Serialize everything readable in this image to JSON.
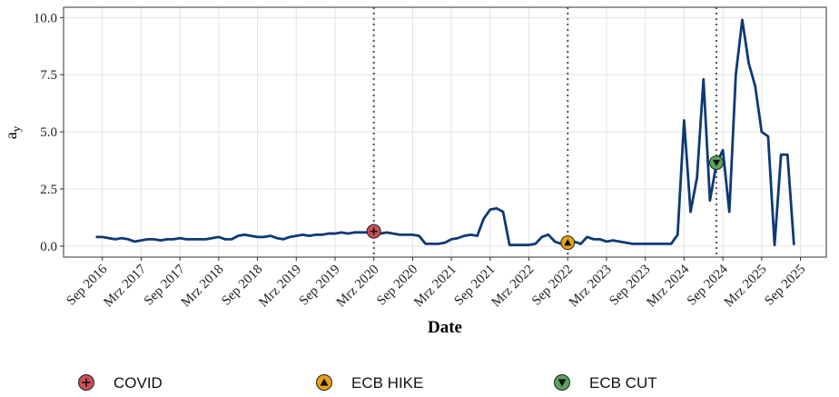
{
  "chart_data": {
    "type": "line",
    "x_label": "Date",
    "y_label": "a",
    "y_label_sub": "y",
    "x": [
      "2016-08",
      "2016-09",
      "2016-10",
      "2016-11",
      "2016-12",
      "2017-01",
      "2017-02",
      "2017-03",
      "2017-04",
      "2017-05",
      "2017-06",
      "2017-07",
      "2017-08",
      "2017-09",
      "2017-10",
      "2017-11",
      "2017-12",
      "2018-01",
      "2018-02",
      "2018-03",
      "2018-04",
      "2018-05",
      "2018-06",
      "2018-07",
      "2018-08",
      "2018-09",
      "2018-10",
      "2018-11",
      "2018-12",
      "2019-01",
      "2019-02",
      "2019-03",
      "2019-04",
      "2019-05",
      "2019-06",
      "2019-07",
      "2019-08",
      "2019-09",
      "2019-10",
      "2019-11",
      "2019-12",
      "2020-01",
      "2020-02",
      "2020-03",
      "2020-04",
      "2020-05",
      "2020-06",
      "2020-07",
      "2020-08",
      "2020-09",
      "2020-10",
      "2020-11",
      "2020-12",
      "2021-01",
      "2021-02",
      "2021-03",
      "2021-04",
      "2021-05",
      "2021-06",
      "2021-07",
      "2021-08",
      "2021-09",
      "2021-10",
      "2021-11",
      "2021-12",
      "2022-01",
      "2022-02",
      "2022-03",
      "2022-04",
      "2022-05",
      "2022-06",
      "2022-07",
      "2022-08",
      "2022-09",
      "2022-10",
      "2022-11",
      "2022-12",
      "2023-01",
      "2023-02",
      "2023-03",
      "2023-04",
      "2023-05",
      "2023-06",
      "2023-07",
      "2023-08",
      "2023-09",
      "2023-10",
      "2023-11",
      "2023-12",
      "2024-01",
      "2024-02",
      "2024-03",
      "2024-04",
      "2024-05",
      "2024-06",
      "2024-07",
      "2024-08",
      "2024-09",
      "2024-10",
      "2024-11",
      "2024-12",
      "2025-01",
      "2025-02",
      "2025-03",
      "2025-04",
      "2025-05",
      "2025-06",
      "2025-07",
      "2025-08"
    ],
    "series": [
      {
        "color": "#0d3a75",
        "values": [
          0.4,
          0.4,
          0.35,
          0.3,
          0.35,
          0.3,
          0.2,
          0.25,
          0.3,
          0.3,
          0.25,
          0.3,
          0.3,
          0.35,
          0.3,
          0.3,
          0.3,
          0.3,
          0.35,
          0.4,
          0.3,
          0.3,
          0.45,
          0.5,
          0.45,
          0.4,
          0.4,
          0.45,
          0.35,
          0.3,
          0.4,
          0.45,
          0.5,
          0.45,
          0.5,
          0.5,
          0.55,
          0.55,
          0.6,
          0.55,
          0.6,
          0.6,
          0.6,
          0.65,
          0.55,
          0.6,
          0.55,
          0.5,
          0.5,
          0.5,
          0.45,
          0.1,
          0.1,
          0.1,
          0.15,
          0.3,
          0.35,
          0.45,
          0.5,
          0.45,
          1.2,
          1.6,
          1.65,
          1.5,
          0.05,
          0.05,
          0.05,
          0.05,
          0.1,
          0.4,
          0.5,
          0.2,
          0.1,
          0.15,
          0.2,
          0.1,
          0.4,
          0.3,
          0.3,
          0.2,
          0.25,
          0.2,
          0.15,
          0.1,
          0.1,
          0.1,
          0.1,
          0.1,
          0.1,
          0.1,
          0.5,
          5.5,
          1.5,
          3.0,
          7.3,
          2.0,
          3.6,
          4.2,
          1.5,
          7.5,
          9.9,
          8.0,
          7.0,
          5.0,
          4.8,
          0.05,
          4.0,
          4.0,
          0.05
        ]
      }
    ],
    "events": [
      {
        "name": "COVID",
        "x": "2020-03",
        "y": 0.65,
        "color": "#c8505a",
        "symbol": "plus"
      },
      {
        "name": "ECB HIKE",
        "x": "2022-09",
        "y": 0.15,
        "color": "#e6a118",
        "symbol": "triangle-up"
      },
      {
        "name": "ECB CUT",
        "x": "2024-08",
        "y": 3.65,
        "color": "#5aa35a",
        "symbol": "triangle-down"
      }
    ],
    "xlim": [
      "2016-03",
      "2026-01"
    ],
    "ylim": [
      -0.48,
      10.45
    ],
    "xticks": [
      {
        "value": "2016-09",
        "label": "Sep 2016"
      },
      {
        "value": "2017-03",
        "label": "Mrz 2017"
      },
      {
        "value": "2017-09",
        "label": "Sep 2017"
      },
      {
        "value": "2018-03",
        "label": "Mrz 2018"
      },
      {
        "value": "2018-09",
        "label": "Sep 2018"
      },
      {
        "value": "2019-03",
        "label": "Mrz 2019"
      },
      {
        "value": "2019-09",
        "label": "Sep 2019"
      },
      {
        "value": "2020-03",
        "label": "Mrz 2020"
      },
      {
        "value": "2020-09",
        "label": "Sep 2020"
      },
      {
        "value": "2021-03",
        "label": "Mrz 2021"
      },
      {
        "value": "2021-09",
        "label": "Sep 2021"
      },
      {
        "value": "2022-03",
        "label": "Mrz 2022"
      },
      {
        "value": "2022-09",
        "label": "Sep 2022"
      },
      {
        "value": "2023-03",
        "label": "Mrz 2023"
      },
      {
        "value": "2023-09",
        "label": "Sep 2023"
      },
      {
        "value": "2024-03",
        "label": "Mrz 2024"
      },
      {
        "value": "2024-09",
        "label": "Sep 2024"
      },
      {
        "value": "2025-03",
        "label": "Mrz 2025"
      },
      {
        "value": "2025-09",
        "label": "Sep 2025"
      }
    ],
    "yticks": [
      {
        "value": 0,
        "label": "0.0"
      },
      2.5,
      {
        "value": 5,
        "label": "5.0"
      },
      7.5,
      {
        "value": 10,
        "label": "10.0"
      }
    ],
    "grid": true
  }
}
